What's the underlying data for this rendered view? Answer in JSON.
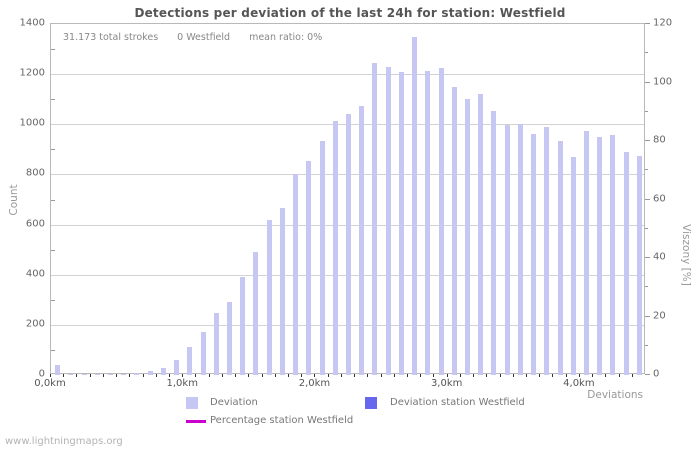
{
  "info": {
    "total_strokes": "31.173 total strokes",
    "station_strokes": "0 Westfield",
    "mean_ratio": "mean ratio: 0%"
  },
  "footer": "www.lightningmaps.org",
  "chart_data": {
    "type": "bar",
    "title": "Detections per deviation of the last 24h for station: Westfield",
    "xlabel": "Deviations",
    "ylabel_left": "Count",
    "ylabel_right": "Viszony [%]",
    "grid": true,
    "ylim_left": [
      0,
      1400
    ],
    "ylim_right": [
      0,
      120
    ],
    "y_ticks_left": [
      0,
      200,
      400,
      600,
      800,
      1000,
      1200,
      1400
    ],
    "y_ticks_right": [
      0,
      20,
      40,
      60,
      80,
      100,
      120
    ],
    "x_range_km": [
      0.0,
      4.5
    ],
    "x_bin_width_km": 0.1,
    "x_tick_labels": [
      {
        "label": "0,0km",
        "km": 0.0
      },
      {
        "label": "1,0km",
        "km": 1.0
      },
      {
        "label": "2,0km",
        "km": 2.0
      },
      {
        "label": "3,0km",
        "km": 3.0
      },
      {
        "label": "4,0km",
        "km": 4.0
      }
    ],
    "x_km": [
      0.0,
      0.1,
      0.2,
      0.3,
      0.4,
      0.5,
      0.6,
      0.7,
      0.8,
      0.9,
      1.0,
      1.1,
      1.2,
      1.3,
      1.4,
      1.5,
      1.6,
      1.7,
      1.8,
      1.9,
      2.0,
      2.1,
      2.2,
      2.3,
      2.4,
      2.5,
      2.6,
      2.7,
      2.8,
      2.9,
      3.0,
      3.1,
      3.2,
      3.3,
      3.4,
      3.5,
      3.6,
      3.7,
      3.8,
      3.9,
      4.0,
      4.1,
      4.2,
      4.3,
      4.4
    ],
    "values": [
      40,
      2,
      3,
      2,
      3,
      5,
      8,
      16,
      28,
      60,
      112,
      170,
      247,
      290,
      390,
      490,
      620,
      668,
      800,
      855,
      935,
      1015,
      1040,
      1072,
      1245,
      1228,
      1207,
      1350,
      1213,
      1226,
      1150,
      1102,
      1122,
      1052,
      998,
      1000,
      962,
      990,
      935,
      870,
      975,
      950,
      958,
      890,
      875
    ],
    "legend": [
      {
        "label": "Deviation",
        "color": "#c7c7f3",
        "type": "square"
      },
      {
        "label": "Deviation station Westfield",
        "color": "#6666ee",
        "type": "square"
      },
      {
        "label": "Percentage station Westfield",
        "color": "#cc00cc",
        "type": "line"
      }
    ],
    "colors": {
      "bar": "#c7c7f3",
      "grid": "#d2d2d2",
      "border": "#b9b9b9",
      "title_text": "#555555",
      "tick_text": "#666666",
      "axis_title_text": "#999999"
    }
  }
}
